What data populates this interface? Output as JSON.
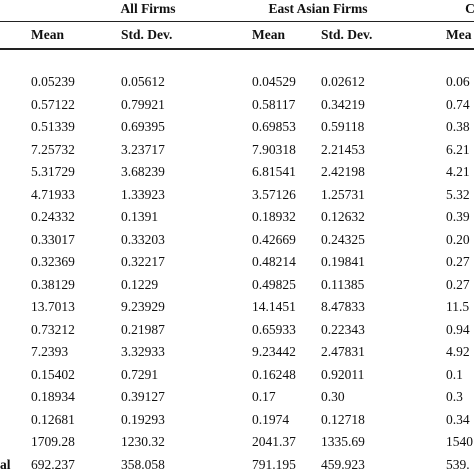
{
  "header": {
    "groups": [
      "All Firms",
      "East Asian Firms",
      "C"
    ],
    "columns": [
      "Mean",
      "Std. Dev.",
      "Mean",
      "Std. Dev.",
      "Mea"
    ]
  },
  "table": {
    "rows": [
      {
        "values": [
          "0.05239",
          "0.05612",
          "0.04529",
          "0.02612",
          "0.06"
        ]
      },
      {
        "values": [
          "0.57122",
          "0.79921",
          "0.58117",
          "0.34219",
          "0.74"
        ]
      },
      {
        "values": [
          "0.51339",
          "0.69395",
          "0.69853",
          "0.59118",
          "0.38"
        ]
      },
      {
        "values": [
          "7.25732",
          "3.23717",
          "7.90318",
          "2.21453",
          "6.21"
        ]
      },
      {
        "values": [
          "5.31729",
          "3.68239",
          "6.81541",
          "2.42198",
          "4.21"
        ]
      },
      {
        "values": [
          "4.71933",
          "1.33923",
          "3.57126",
          "1.25731",
          "5.32"
        ]
      },
      {
        "values": [
          "0.24332",
          "0.1391",
          "0.18932",
          "0.12632",
          "0.39"
        ]
      },
      {
        "values": [
          "0.33017",
          "0.33203",
          "0.42669",
          "0.24325",
          "0.20"
        ]
      },
      {
        "values": [
          "0.32369",
          "0.32217",
          "0.48214",
          "0.19841",
          "0.27"
        ]
      },
      {
        "values": [
          "0.38129",
          "0.1229",
          "0.49825",
          "0.11385",
          "0.27"
        ]
      },
      {
        "values": [
          "13.7013",
          "9.23929",
          "14.1451",
          "8.47833",
          "11.5"
        ]
      },
      {
        "values": [
          "0.73212",
          "0.21987",
          "0.65933",
          "0.22343",
          "0.94"
        ]
      },
      {
        "values": [
          "7.2393",
          "3.32933",
          "9.23442",
          "2.47831",
          "4.92"
        ]
      },
      {
        "values": [
          "0.15402",
          "0.7291",
          "0.16248",
          "0.92011",
          "0.1"
        ]
      },
      {
        "values": [
          "0.18934",
          "0.39127",
          "0.17",
          "0.30",
          "0.3"
        ]
      },
      {
        "values": [
          "0.12681",
          "0.19293",
          "0.1974",
          "0.12718",
          "0.34"
        ]
      },
      {
        "values": [
          "1709.28",
          "1230.32",
          "2041.37",
          "1335.69",
          "1540"
        ]
      },
      {
        "label": "al",
        "values": [
          "692.237",
          "358.058",
          "791.195",
          "459.923",
          "539."
        ]
      }
    ]
  }
}
